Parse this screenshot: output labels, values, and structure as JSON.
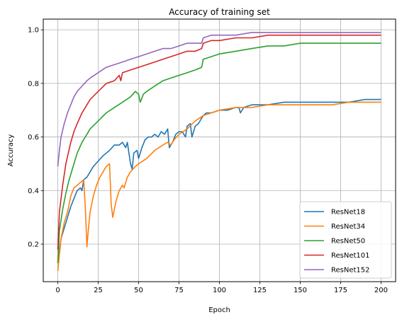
{
  "chart_data": {
    "type": "line",
    "title": "Accuracy of training set",
    "xlabel": "Epoch",
    "ylabel": "Accuracy",
    "xlim": [
      -9,
      209
    ],
    "ylim": [
      0.06,
      1.04
    ],
    "xticks": [
      0,
      25,
      50,
      75,
      100,
      125,
      150,
      175,
      200
    ],
    "yticks": [
      0.2,
      0.4,
      0.6,
      0.8,
      1.0
    ],
    "ytick_labels": [
      "0.2",
      "0.4",
      "0.6",
      "0.8",
      "1.0"
    ],
    "grid": true,
    "legend_position": "lower-right",
    "series": [
      {
        "name": "ResNet18",
        "color": "#1f77b4",
        "points": [
          [
            0,
            0.13
          ],
          [
            2,
            0.22
          ],
          [
            4,
            0.26
          ],
          [
            6,
            0.3
          ],
          [
            8,
            0.34
          ],
          [
            10,
            0.37
          ],
          [
            12,
            0.4
          ],
          [
            14,
            0.41
          ],
          [
            15,
            0.4
          ],
          [
            16,
            0.44
          ],
          [
            18,
            0.45
          ],
          [
            20,
            0.47
          ],
          [
            22,
            0.49
          ],
          [
            25,
            0.51
          ],
          [
            28,
            0.53
          ],
          [
            30,
            0.54
          ],
          [
            32,
            0.55
          ],
          [
            35,
            0.57
          ],
          [
            38,
            0.57
          ],
          [
            40,
            0.58
          ],
          [
            42,
            0.56
          ],
          [
            43,
            0.58
          ],
          [
            45,
            0.5
          ],
          [
            46,
            0.48
          ],
          [
            47,
            0.54
          ],
          [
            49,
            0.55
          ],
          [
            50,
            0.52
          ],
          [
            52,
            0.56
          ],
          [
            54,
            0.59
          ],
          [
            56,
            0.6
          ],
          [
            58,
            0.6
          ],
          [
            60,
            0.61
          ],
          [
            62,
            0.6
          ],
          [
            64,
            0.62
          ],
          [
            66,
            0.61
          ],
          [
            68,
            0.63
          ],
          [
            69,
            0.56
          ],
          [
            71,
            0.58
          ],
          [
            73,
            0.61
          ],
          [
            75,
            0.62
          ],
          [
            77,
            0.62
          ],
          [
            79,
            0.6
          ],
          [
            80,
            0.64
          ],
          [
            82,
            0.65
          ],
          [
            83,
            0.6
          ],
          [
            85,
            0.64
          ],
          [
            87,
            0.65
          ],
          [
            89,
            0.67
          ],
          [
            90,
            0.68
          ],
          [
            92,
            0.69
          ],
          [
            95,
            0.69
          ],
          [
            100,
            0.7
          ],
          [
            105,
            0.7
          ],
          [
            110,
            0.71
          ],
          [
            112,
            0.71
          ],
          [
            113,
            0.69
          ],
          [
            115,
            0.71
          ],
          [
            120,
            0.72
          ],
          [
            130,
            0.72
          ],
          [
            140,
            0.73
          ],
          [
            150,
            0.73
          ],
          [
            160,
            0.73
          ],
          [
            170,
            0.73
          ],
          [
            180,
            0.73
          ],
          [
            190,
            0.74
          ],
          [
            200,
            0.74
          ]
        ]
      },
      {
        "name": "ResNet34",
        "color": "#ff7f0e",
        "points": [
          [
            0,
            0.1
          ],
          [
            1,
            0.16
          ],
          [
            2,
            0.22
          ],
          [
            4,
            0.28
          ],
          [
            6,
            0.32
          ],
          [
            8,
            0.38
          ],
          [
            10,
            0.41
          ],
          [
            12,
            0.42
          ],
          [
            14,
            0.43
          ],
          [
            16,
            0.44
          ],
          [
            17,
            0.34
          ],
          [
            18,
            0.19
          ],
          [
            19,
            0.26
          ],
          [
            20,
            0.32
          ],
          [
            22,
            0.38
          ],
          [
            24,
            0.42
          ],
          [
            26,
            0.45
          ],
          [
            28,
            0.47
          ],
          [
            30,
            0.49
          ],
          [
            32,
            0.5
          ],
          [
            33,
            0.35
          ],
          [
            34,
            0.3
          ],
          [
            36,
            0.36
          ],
          [
            38,
            0.4
          ],
          [
            40,
            0.42
          ],
          [
            41,
            0.41
          ],
          [
            43,
            0.45
          ],
          [
            45,
            0.47
          ],
          [
            48,
            0.49
          ],
          [
            50,
            0.5
          ],
          [
            55,
            0.52
          ],
          [
            60,
            0.55
          ],
          [
            65,
            0.57
          ],
          [
            68,
            0.58
          ],
          [
            70,
            0.57
          ],
          [
            72,
            0.59
          ],
          [
            75,
            0.61
          ],
          [
            80,
            0.63
          ],
          [
            85,
            0.66
          ],
          [
            90,
            0.68
          ],
          [
            95,
            0.69
          ],
          [
            100,
            0.7
          ],
          [
            110,
            0.71
          ],
          [
            120,
            0.71
          ],
          [
            130,
            0.72
          ],
          [
            140,
            0.72
          ],
          [
            150,
            0.72
          ],
          [
            160,
            0.72
          ],
          [
            170,
            0.72
          ],
          [
            180,
            0.73
          ],
          [
            190,
            0.73
          ],
          [
            200,
            0.73
          ]
        ]
      },
      {
        "name": "ResNet50",
        "color": "#2ca02c",
        "points": [
          [
            0,
            0.13
          ],
          [
            1,
            0.25
          ],
          [
            3,
            0.33
          ],
          [
            5,
            0.39
          ],
          [
            7,
            0.44
          ],
          [
            10,
            0.5
          ],
          [
            12,
            0.54
          ],
          [
            15,
            0.58
          ],
          [
            18,
            0.61
          ],
          [
            20,
            0.63
          ],
          [
            25,
            0.66
          ],
          [
            30,
            0.69
          ],
          [
            35,
            0.71
          ],
          [
            40,
            0.73
          ],
          [
            45,
            0.75
          ],
          [
            48,
            0.77
          ],
          [
            50,
            0.76
          ],
          [
            51,
            0.73
          ],
          [
            53,
            0.76
          ],
          [
            55,
            0.77
          ],
          [
            60,
            0.79
          ],
          [
            65,
            0.81
          ],
          [
            70,
            0.82
          ],
          [
            75,
            0.83
          ],
          [
            80,
            0.84
          ],
          [
            85,
            0.85
          ],
          [
            89,
            0.86
          ],
          [
            90,
            0.89
          ],
          [
            95,
            0.9
          ],
          [
            100,
            0.91
          ],
          [
            110,
            0.92
          ],
          [
            120,
            0.93
          ],
          [
            130,
            0.94
          ],
          [
            140,
            0.94
          ],
          [
            150,
            0.95
          ],
          [
            160,
            0.95
          ],
          [
            170,
            0.95
          ],
          [
            180,
            0.95
          ],
          [
            190,
            0.95
          ],
          [
            200,
            0.95
          ]
        ]
      },
      {
        "name": "ResNet101",
        "color": "#d62728",
        "points": [
          [
            0,
            0.18
          ],
          [
            1,
            0.32
          ],
          [
            3,
            0.42
          ],
          [
            5,
            0.5
          ],
          [
            8,
            0.58
          ],
          [
            10,
            0.62
          ],
          [
            12,
            0.65
          ],
          [
            15,
            0.69
          ],
          [
            18,
            0.72
          ],
          [
            20,
            0.74
          ],
          [
            25,
            0.77
          ],
          [
            30,
            0.8
          ],
          [
            35,
            0.81
          ],
          [
            38,
            0.83
          ],
          [
            39,
            0.81
          ],
          [
            40,
            0.84
          ],
          [
            45,
            0.85
          ],
          [
            50,
            0.86
          ],
          [
            55,
            0.87
          ],
          [
            60,
            0.88
          ],
          [
            65,
            0.89
          ],
          [
            70,
            0.9
          ],
          [
            75,
            0.91
          ],
          [
            80,
            0.92
          ],
          [
            85,
            0.92
          ],
          [
            89,
            0.93
          ],
          [
            90,
            0.95
          ],
          [
            95,
            0.96
          ],
          [
            100,
            0.96
          ],
          [
            110,
            0.97
          ],
          [
            120,
            0.97
          ],
          [
            130,
            0.98
          ],
          [
            140,
            0.98
          ],
          [
            150,
            0.98
          ],
          [
            160,
            0.98
          ],
          [
            170,
            0.98
          ],
          [
            180,
            0.98
          ],
          [
            190,
            0.98
          ],
          [
            200,
            0.98
          ]
        ]
      },
      {
        "name": "ResNet152",
        "color": "#9467bd",
        "points": [
          [
            0,
            0.49
          ],
          [
            1,
            0.55
          ],
          [
            2,
            0.6
          ],
          [
            4,
            0.65
          ],
          [
            6,
            0.69
          ],
          [
            8,
            0.72
          ],
          [
            10,
            0.75
          ],
          [
            12,
            0.77
          ],
          [
            15,
            0.79
          ],
          [
            18,
            0.81
          ],
          [
            20,
            0.82
          ],
          [
            25,
            0.84
          ],
          [
            30,
            0.86
          ],
          [
            35,
            0.87
          ],
          [
            40,
            0.88
          ],
          [
            45,
            0.89
          ],
          [
            50,
            0.9
          ],
          [
            55,
            0.91
          ],
          [
            60,
            0.92
          ],
          [
            65,
            0.93
          ],
          [
            70,
            0.93
          ],
          [
            75,
            0.94
          ],
          [
            80,
            0.95
          ],
          [
            85,
            0.95
          ],
          [
            89,
            0.95
          ],
          [
            90,
            0.97
          ],
          [
            95,
            0.98
          ],
          [
            100,
            0.98
          ],
          [
            110,
            0.98
          ],
          [
            120,
            0.99
          ],
          [
            130,
            0.99
          ],
          [
            140,
            0.99
          ],
          [
            150,
            0.99
          ],
          [
            160,
            0.99
          ],
          [
            170,
            0.99
          ],
          [
            180,
            0.99
          ],
          [
            190,
            0.99
          ],
          [
            200,
            0.99
          ]
        ]
      }
    ]
  }
}
